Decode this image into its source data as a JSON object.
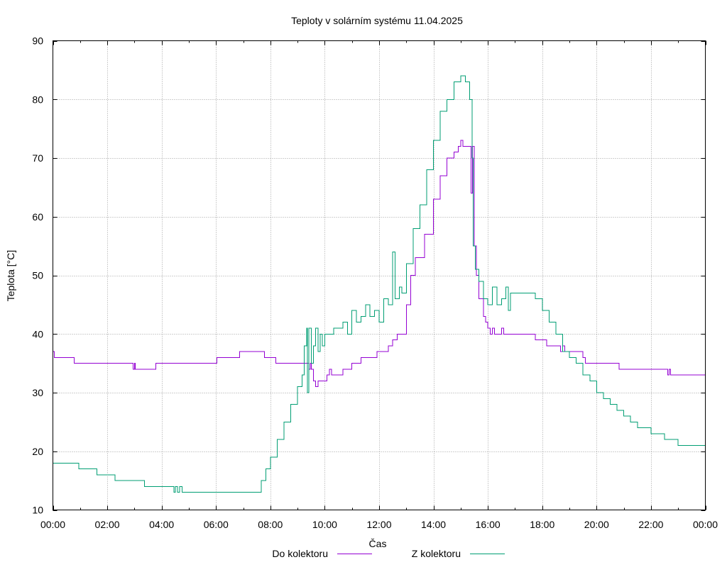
{
  "chart_data": {
    "type": "line",
    "title": "Teploty v solárním systému 11.04.2025",
    "xlabel": "Čas",
    "ylabel": "Teplota [°C]",
    "ylim": [
      10,
      90
    ],
    "yticks": [
      10,
      20,
      30,
      40,
      50,
      60,
      70,
      80,
      90
    ],
    "xlim_hours": [
      0,
      24
    ],
    "xticks": [
      "00:00",
      "02:00",
      "04:00",
      "06:00",
      "08:00",
      "10:00",
      "12:00",
      "14:00",
      "16:00",
      "18:00",
      "20:00",
      "22:00",
      "00:00"
    ],
    "grid": true,
    "legend_position": "bottom",
    "series": [
      {
        "name": "Do kolektoru",
        "color": "#9400d3",
        "points": [
          [
            "00:00",
            37
          ],
          [
            "00:03",
            36
          ],
          [
            "00:45",
            36
          ],
          [
            "00:47",
            35
          ],
          [
            "02:55",
            35
          ],
          [
            "02:57",
            34
          ],
          [
            "03:00",
            35
          ],
          [
            "03:02",
            34
          ],
          [
            "03:45",
            34
          ],
          [
            "03:47",
            35
          ],
          [
            "06:00",
            35
          ],
          [
            "06:02",
            36
          ],
          [
            "06:50",
            36
          ],
          [
            "06:52",
            37
          ],
          [
            "07:45",
            37
          ],
          [
            "07:47",
            36
          ],
          [
            "08:10",
            36
          ],
          [
            "08:12",
            35
          ],
          [
            "09:20",
            35
          ],
          [
            "09:25",
            34
          ],
          [
            "09:28",
            35
          ],
          [
            "09:30",
            34
          ],
          [
            "09:35",
            32
          ],
          [
            "09:40",
            31
          ],
          [
            "09:45",
            32
          ],
          [
            "10:00",
            32
          ],
          [
            "10:05",
            33
          ],
          [
            "10:10",
            34
          ],
          [
            "10:15",
            33
          ],
          [
            "10:35",
            33
          ],
          [
            "10:40",
            34
          ],
          [
            "10:55",
            34
          ],
          [
            "11:00",
            35
          ],
          [
            "11:15",
            35
          ],
          [
            "11:20",
            36
          ],
          [
            "11:50",
            36
          ],
          [
            "11:55",
            37
          ],
          [
            "12:15",
            37
          ],
          [
            "12:20",
            38
          ],
          [
            "12:30",
            39
          ],
          [
            "12:40",
            40
          ],
          [
            "12:50",
            40
          ],
          [
            "13:00",
            45
          ],
          [
            "13:10",
            50
          ],
          [
            "13:20",
            53
          ],
          [
            "13:40",
            57
          ],
          [
            "14:00",
            63
          ],
          [
            "14:15",
            67
          ],
          [
            "14:30",
            70
          ],
          [
            "14:45",
            71
          ],
          [
            "14:55",
            72
          ],
          [
            "15:00",
            73
          ],
          [
            "15:05",
            72
          ],
          [
            "15:20",
            72
          ],
          [
            "15:23",
            64
          ],
          [
            "15:26",
            72
          ],
          [
            "15:30",
            55
          ],
          [
            "15:35",
            50
          ],
          [
            "15:40",
            46
          ],
          [
            "15:50",
            43
          ],
          [
            "15:55",
            42
          ],
          [
            "16:00",
            41
          ],
          [
            "16:05",
            40
          ],
          [
            "16:10",
            41
          ],
          [
            "16:15",
            40
          ],
          [
            "16:30",
            41
          ],
          [
            "16:35",
            40
          ],
          [
            "17:40",
            40
          ],
          [
            "17:45",
            39
          ],
          [
            "18:05",
            39
          ],
          [
            "18:10",
            38
          ],
          [
            "18:35",
            38
          ],
          [
            "18:40",
            37
          ],
          [
            "18:45",
            38
          ],
          [
            "18:50",
            37
          ],
          [
            "19:25",
            37
          ],
          [
            "19:30",
            36
          ],
          [
            "19:35",
            35
          ],
          [
            "20:45",
            35
          ],
          [
            "20:50",
            34
          ],
          [
            "22:35",
            34
          ],
          [
            "22:37",
            33
          ],
          [
            "22:40",
            34
          ],
          [
            "22:43",
            33
          ],
          [
            "24:00",
            33
          ]
        ]
      },
      {
        "name": "Z kolektoru",
        "color": "#009e73",
        "points": [
          [
            "00:00",
            18
          ],
          [
            "00:55",
            18
          ],
          [
            "00:57",
            17
          ],
          [
            "01:35",
            17
          ],
          [
            "01:37",
            16
          ],
          [
            "02:15",
            16
          ],
          [
            "02:17",
            15
          ],
          [
            "03:20",
            15
          ],
          [
            "03:22",
            14
          ],
          [
            "04:25",
            14
          ],
          [
            "04:27",
            13
          ],
          [
            "04:30",
            14
          ],
          [
            "04:35",
            13
          ],
          [
            "04:40",
            14
          ],
          [
            "04:45",
            13
          ],
          [
            "07:35",
            13
          ],
          [
            "07:40",
            15
          ],
          [
            "07:50",
            17
          ],
          [
            "08:00",
            19
          ],
          [
            "08:15",
            22
          ],
          [
            "08:30",
            25
          ],
          [
            "08:45",
            28
          ],
          [
            "09:00",
            31
          ],
          [
            "09:10",
            33
          ],
          [
            "09:15",
            38
          ],
          [
            "09:20",
            41
          ],
          [
            "09:22",
            30
          ],
          [
            "09:25",
            41
          ],
          [
            "09:30",
            35
          ],
          [
            "09:35",
            38
          ],
          [
            "09:40",
            41
          ],
          [
            "09:45",
            37
          ],
          [
            "09:50",
            40
          ],
          [
            "09:55",
            38
          ],
          [
            "10:00",
            40
          ],
          [
            "10:20",
            41
          ],
          [
            "10:40",
            42
          ],
          [
            "10:50",
            40
          ],
          [
            "11:00",
            44
          ],
          [
            "11:10",
            42
          ],
          [
            "11:20",
            43
          ],
          [
            "11:30",
            45
          ],
          [
            "11:40",
            43
          ],
          [
            "11:50",
            44
          ],
          [
            "12:00",
            42
          ],
          [
            "12:10",
            46
          ],
          [
            "12:20",
            45
          ],
          [
            "12:30",
            54
          ],
          [
            "12:35",
            46
          ],
          [
            "12:45",
            48
          ],
          [
            "12:50",
            47
          ],
          [
            "13:00",
            52
          ],
          [
            "13:15",
            58
          ],
          [
            "13:30",
            62
          ],
          [
            "13:45",
            68
          ],
          [
            "14:00",
            73
          ],
          [
            "14:15",
            78
          ],
          [
            "14:30",
            80
          ],
          [
            "14:45",
            83
          ],
          [
            "15:00",
            84
          ],
          [
            "15:10",
            83
          ],
          [
            "15:20",
            80
          ],
          [
            "15:25",
            70
          ],
          [
            "15:28",
            55
          ],
          [
            "15:32",
            51
          ],
          [
            "15:40",
            49
          ],
          [
            "15:50",
            46
          ],
          [
            "16:00",
            45
          ],
          [
            "16:10",
            48
          ],
          [
            "16:20",
            45
          ],
          [
            "16:30",
            46
          ],
          [
            "16:40",
            48
          ],
          [
            "16:45",
            44
          ],
          [
            "16:50",
            47
          ],
          [
            "17:30",
            47
          ],
          [
            "17:45",
            46
          ],
          [
            "18:00",
            44
          ],
          [
            "18:15",
            42
          ],
          [
            "18:30",
            40
          ],
          [
            "18:45",
            37
          ],
          [
            "19:00",
            36
          ],
          [
            "19:15",
            35
          ],
          [
            "19:30",
            33
          ],
          [
            "19:45",
            32
          ],
          [
            "20:00",
            30
          ],
          [
            "20:15",
            29
          ],
          [
            "20:30",
            28
          ],
          [
            "20:45",
            27
          ],
          [
            "21:00",
            26
          ],
          [
            "21:15",
            25
          ],
          [
            "21:30",
            24
          ],
          [
            "22:00",
            23
          ],
          [
            "22:30",
            22
          ],
          [
            "23:00",
            21
          ],
          [
            "24:00",
            20
          ]
        ]
      }
    ]
  }
}
